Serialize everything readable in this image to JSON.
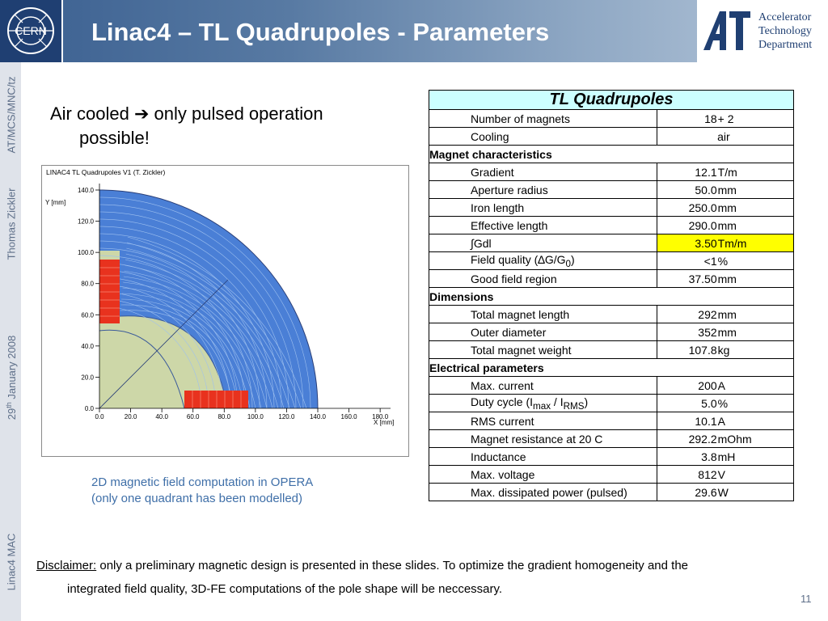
{
  "header": {
    "title": "Linac4 – TL Quadrupoles - Parameters",
    "cern_logo_text": "CERN",
    "dept_lines": [
      "Accelerator",
      "Technology",
      "Department"
    ]
  },
  "sidebar": {
    "items": [
      "AT/MCS/MNC/tz",
      "Thomas Zickler",
      "29",
      "th",
      " January 2008",
      "Linac4   MAC"
    ]
  },
  "bullet": {
    "line1a": "Air cooled ",
    "arrow": "➔",
    "line1b": " only pulsed operation",
    "line2": "possible!"
  },
  "figure": {
    "title": "LINAC4 TL Quadrupoles V1 (T. Zickler)",
    "ylabel": "Y [mm]",
    "xlabel": "X [mm]",
    "yticks": [
      "140.0",
      "120.0",
      "100.0",
      "80.0",
      "60.0",
      "40.0",
      "20.0",
      "0.0"
    ],
    "xticks": [
      "0.0",
      "20.0",
      "40.0",
      "60.0",
      "80.0",
      "100.0",
      "120.0",
      "140.0",
      "160.0",
      "180.0"
    ],
    "colors": {
      "field": "#4a7fd6",
      "iron_low": "#cdd7a8",
      "coil": "#e8321e"
    }
  },
  "caption": [
    "2D magnetic field computation in OPERA",
    "(only one quadrant has been modelled)"
  ],
  "table": {
    "title": "TL Quadrupoles",
    "rows": [
      {
        "name": "Number of magnets",
        "value": "18",
        "unit": "+ 2"
      },
      {
        "name": "Cooling",
        "value": "air",
        "unit": ""
      },
      {
        "section": "Magnet characteristics"
      },
      {
        "name": "Gradient",
        "value": "12.1",
        "unit": "T/m"
      },
      {
        "name": "Aperture radius",
        "value": "50.0",
        "unit": "mm"
      },
      {
        "name": "Iron length",
        "value": "250.0",
        "unit": "mm"
      },
      {
        "name": "Effective length",
        "value": "290.0",
        "unit": "mm"
      },
      {
        "name": "∫Gdl",
        "value": "3.50",
        "unit": "Tm/m"
      },
      {
        "name": "Field quality (∆G/G",
        "sub": "0",
        "name_after": ")",
        "value": "<1",
        "unit": "%"
      },
      {
        "name": "Good field region",
        "value": "37.50",
        "unit": "mm"
      },
      {
        "section": "Dimensions"
      },
      {
        "name": "Total magnet length",
        "value": "292",
        "unit": "mm"
      },
      {
        "name": "Outer diameter",
        "value": "352",
        "unit": "mm"
      },
      {
        "name": "Total magnet weight",
        "value": "107.8",
        "unit": "kg"
      },
      {
        "section": "Electrical parameters"
      },
      {
        "name": "Max. current",
        "value": "200",
        "unit": "A"
      },
      {
        "name": "Duty cycle (I",
        "sub1": "max",
        "mid": " / I",
        "sub2": "RMS",
        "name_after": ")",
        "value": "5.0",
        "unit": "%"
      },
      {
        "name": "RMS current",
        "value": "10.1",
        "unit": "A"
      },
      {
        "name": "Magnet resistance at 20 C",
        "value": "292.2",
        "unit": "mOhm"
      },
      {
        "name": "Inductance",
        "value": "3.8",
        "unit": "mH"
      },
      {
        "name": "Max. voltage",
        "value": "812",
        "unit": "V"
      },
      {
        "name": "Max. dissipated power (pulsed)",
        "value": "29.6",
        "unit": "W"
      }
    ]
  },
  "disclaimer": {
    "label": "Disclaimer:",
    "text1": " only a preliminary magnetic design is presented in these slides. To optimize the gradient homogeneity and the",
    "text2": "integrated field quality, 3D-FE computations of the pole shape will be neccessary."
  },
  "page_number": "11"
}
